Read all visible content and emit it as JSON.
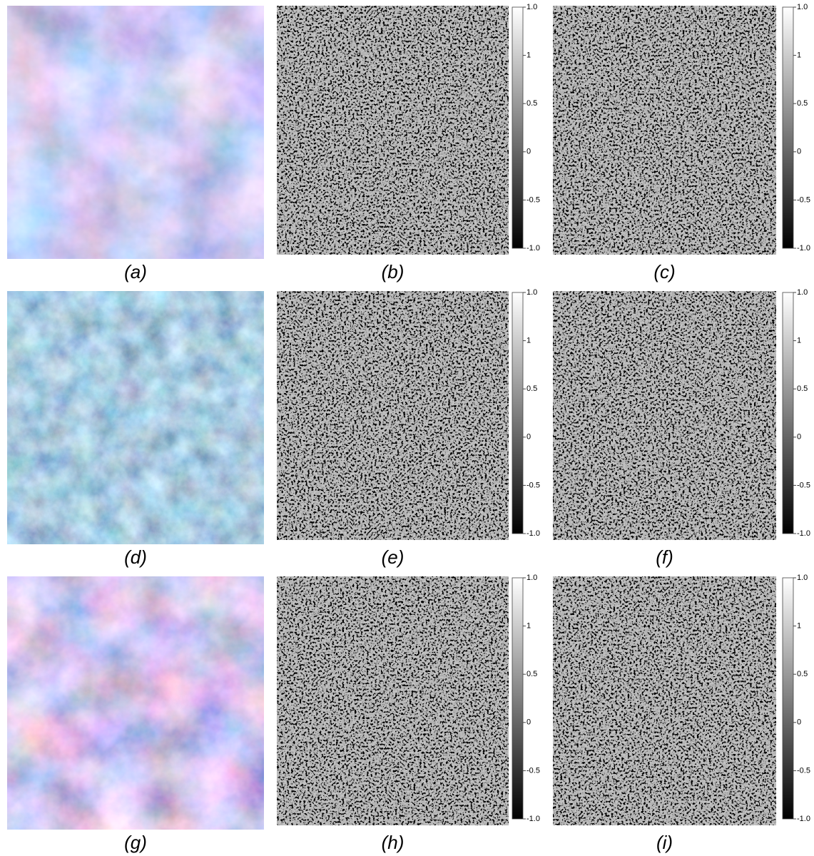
{
  "rows": [
    [
      "(a)",
      "(b)",
      "(c)"
    ],
    [
      "(d)",
      "(e)",
      "(f)"
    ],
    [
      "(g)",
      "(h)",
      "(i)"
    ]
  ],
  "colorbar_ticks": [
    "1.0",
    "1",
    "0.5",
    "0",
    "-0.5",
    "-1.0"
  ]
}
